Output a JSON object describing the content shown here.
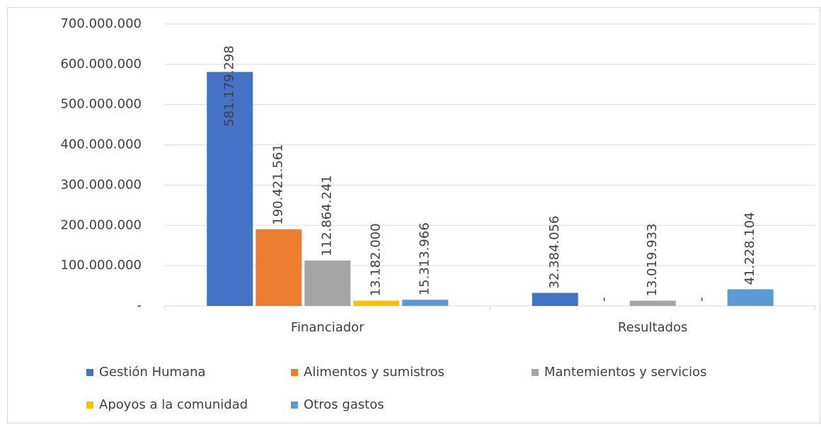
{
  "chart_data": {
    "type": "bar",
    "categories": [
      "Financiador",
      "Resultados"
    ],
    "series": [
      {
        "name": "Gestión Humana",
        "color": "#4472c4",
        "values": [
          581179298,
          32384056
        ],
        "value_labels": [
          "581.179.298",
          "32.384.056"
        ]
      },
      {
        "name": "Alimentos y sumistros",
        "color": "#ed7d31",
        "values": [
          190421561,
          0
        ],
        "value_labels": [
          "190.421.561",
          "-"
        ]
      },
      {
        "name": "Mantemientos y servicios",
        "color": "#a5a5a5",
        "values": [
          112864241,
          13019933
        ],
        "value_labels": [
          "112.864.241",
          "13.019.933"
        ]
      },
      {
        "name": "Apoyos a la comunidad",
        "color": "#ffc000",
        "values": [
          13182000,
          0
        ],
        "value_labels": [
          "13.182.000",
          "-"
        ]
      },
      {
        "name": "Otros gastos",
        "color": "#5b9bd5",
        "values": [
          15313966,
          41228104
        ],
        "value_labels": [
          "15.313.966",
          "41.228.104"
        ]
      }
    ],
    "ylim": [
      0,
      700000000
    ],
    "yticks": [
      {
        "value": 0,
        "label": "-"
      },
      {
        "value": 100000000,
        "label": "100.000.000"
      },
      {
        "value": 200000000,
        "label": "200.000.000"
      },
      {
        "value": 300000000,
        "label": "300.000.000"
      },
      {
        "value": 400000000,
        "label": "400.000.000"
      },
      {
        "value": 500000000,
        "label": "500.000.000"
      },
      {
        "value": 600000000,
        "label": "600.000.000"
      },
      {
        "value": 700000000,
        "label": "700.000.000"
      }
    ],
    "grid": true,
    "legend": "bottom"
  }
}
